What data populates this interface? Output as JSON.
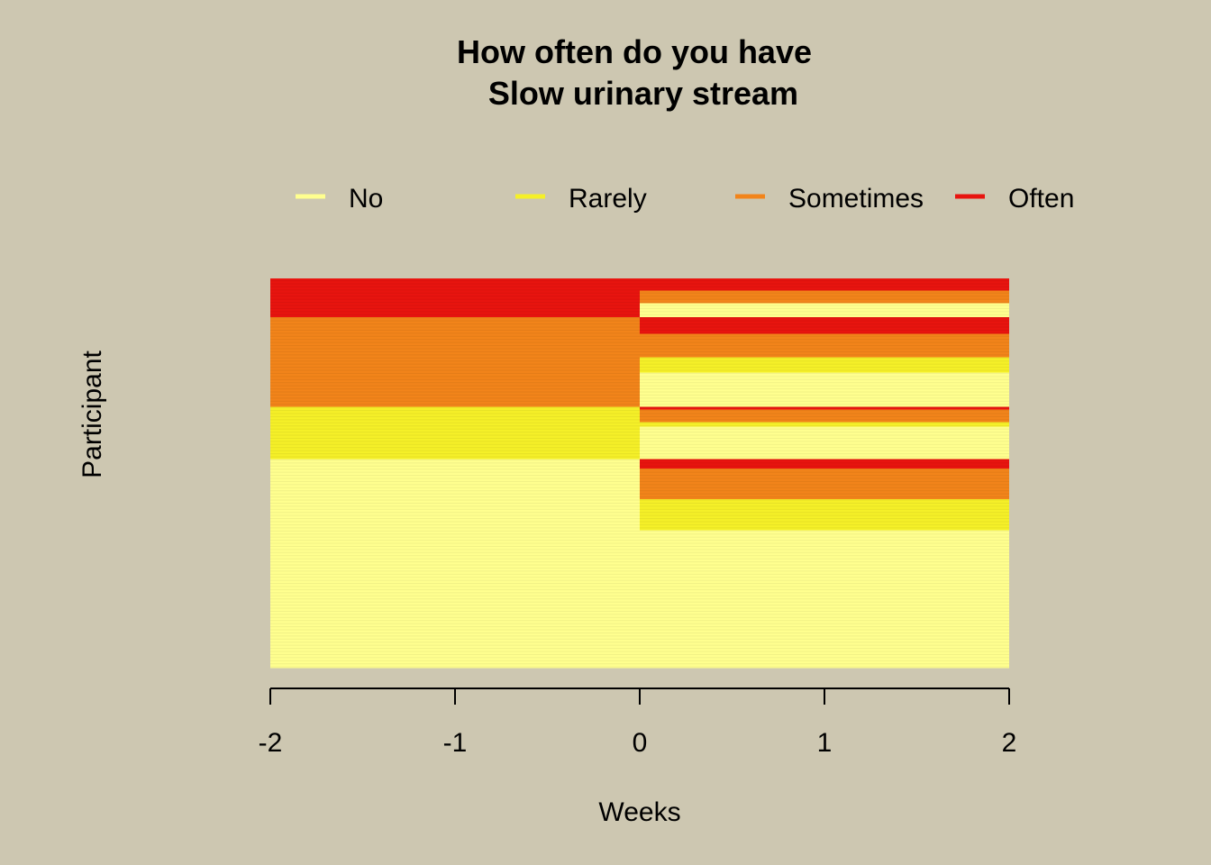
{
  "chart_data": {
    "type": "heatmap",
    "title_lines": [
      "How often do you have",
      "Slow urinary stream"
    ],
    "xlabel": "Weeks",
    "ylabel": "Participant",
    "xlim": [
      -2,
      2
    ],
    "x_ticks": [
      -2,
      -1,
      0,
      1,
      2
    ],
    "x_tick_labels": [
      "-2",
      "-1",
      "0",
      "1",
      "2"
    ],
    "legend": {
      "placement": "top",
      "entries": [
        {
          "label": "No",
          "color": "#FFFF8F"
        },
        {
          "label": "Rarely",
          "color": "#F5F028"
        },
        {
          "label": "Sometimes",
          "color": "#F2841A"
        },
        {
          "label": "Often",
          "color": "#E8140F"
        }
      ]
    },
    "time_points": [
      -2,
      0
    ],
    "participant_segments": [
      {
        "before": "Often",
        "after": "Often",
        "count": 8
      },
      {
        "before": "Often",
        "after": "Sometimes",
        "count": 8
      },
      {
        "before": "Often",
        "after": "No",
        "count": 9
      },
      {
        "before": "Sometimes",
        "after": "Often",
        "count": 11
      },
      {
        "before": "Sometimes",
        "after": "Sometimes",
        "count": 15
      },
      {
        "before": "Sometimes",
        "after": "Rarely",
        "count": 10
      },
      {
        "before": "Sometimes",
        "after": "No",
        "count": 22
      },
      {
        "before": "Rarely",
        "after": "Often",
        "count": 2
      },
      {
        "before": "Rarely",
        "after": "Sometimes",
        "count": 8
      },
      {
        "before": "Rarely",
        "after": "Rarely",
        "count": 3
      },
      {
        "before": "Rarely",
        "after": "No",
        "count": 21
      },
      {
        "before": "No",
        "after": "Often",
        "count": 6
      },
      {
        "before": "No",
        "after": "Sometimes",
        "count": 20
      },
      {
        "before": "No",
        "after": "Rarely",
        "count": 20
      },
      {
        "before": "No",
        "after": "No",
        "count": 89
      }
    ]
  }
}
